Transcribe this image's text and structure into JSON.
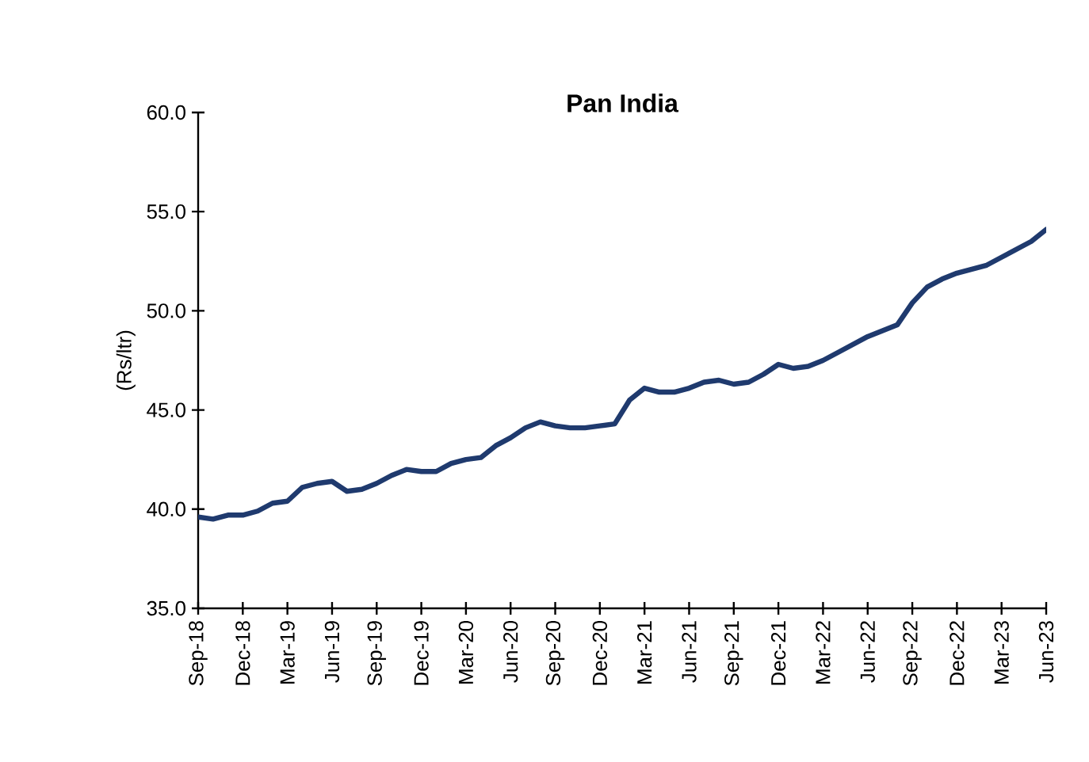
{
  "chart_data": {
    "type": "line",
    "title": "Pan India",
    "ylabel": "(Rs/ltr)",
    "categories": [
      "Sep-18",
      null,
      null,
      "Dec-18",
      null,
      null,
      "Mar-19",
      null,
      null,
      "Jun-19",
      null,
      null,
      "Sep-19",
      null,
      null,
      "Dec-19",
      null,
      null,
      "Mar-20",
      null,
      null,
      "Jun-20",
      null,
      null,
      "Sep-20",
      null,
      null,
      "Dec-20",
      null,
      null,
      "Mar-21",
      null,
      null,
      "Jun-21",
      null,
      null,
      "Sep-21",
      null,
      null,
      "Dec-21",
      null,
      null,
      "Mar-22",
      null,
      null,
      "Jun-22",
      null,
      null,
      "Sep-22",
      null,
      null,
      "Dec-22",
      null,
      null,
      "Mar-23",
      null,
      null,
      "Jun-23"
    ],
    "series": [
      {
        "color": "#1f3a6e",
        "values": [
          39.6,
          39.5,
          39.7,
          39.7,
          39.9,
          40.3,
          40.4,
          41.1,
          41.3,
          41.4,
          40.9,
          41.0,
          41.3,
          41.7,
          42.0,
          41.9,
          41.9,
          42.3,
          42.5,
          42.6,
          43.2,
          43.6,
          44.1,
          44.4,
          44.2,
          44.1,
          44.1,
          44.2,
          44.3,
          45.5,
          46.1,
          45.9,
          45.9,
          46.1,
          46.4,
          46.5,
          46.3,
          46.4,
          46.8,
          47.3,
          47.1,
          47.2,
          47.5,
          47.9,
          48.3,
          48.7,
          49.0,
          49.3,
          50.4,
          51.2,
          51.6,
          51.9,
          52.1,
          52.3,
          52.7,
          53.1,
          53.5,
          54.1
        ]
      }
    ],
    "ylim": [
      35,
      60
    ],
    "yticks": [
      {
        "value": 35,
        "label": "35.0"
      },
      {
        "value": 40,
        "label": "40.0"
      },
      {
        "value": 45,
        "label": "45.0"
      },
      {
        "value": 50,
        "label": "50.0"
      },
      {
        "value": 55,
        "label": "55.0"
      },
      {
        "value": 60,
        "label": "60.0"
      }
    ],
    "marker": "none",
    "line_style": "solid",
    "grid": false
  }
}
